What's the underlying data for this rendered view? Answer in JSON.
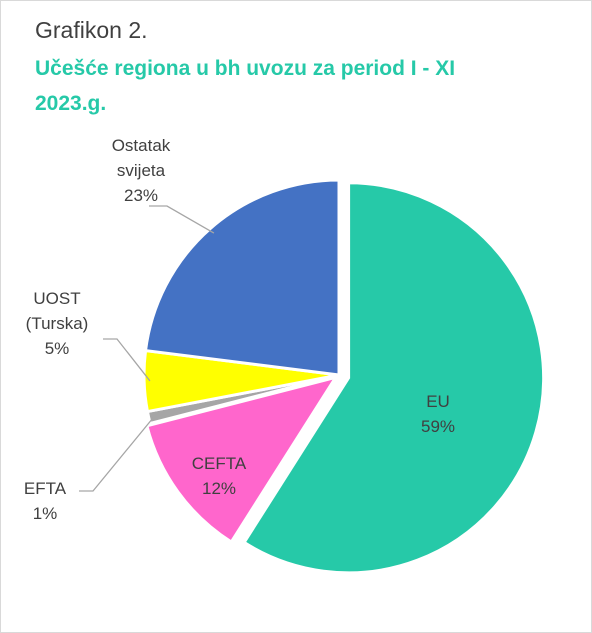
{
  "chart_data": {
    "type": "pie",
    "subtitle": "Grafikon 2.",
    "title": "Učešće regiona u bh uvozu za period I - XI 2023.g.",
    "categories": [
      "EU",
      "CEFTA",
      "EFTA",
      "UOST (Turska)",
      "Ostatak svijeta"
    ],
    "values": [
      59,
      12,
      1,
      5,
      23
    ],
    "value_labels": [
      "59%",
      "12%",
      "1%",
      "5%",
      "23%"
    ],
    "colors": [
      "#26c9a8",
      "#ff66cc",
      "#a6a6a6",
      "#ffff00",
      "#4472c4"
    ]
  }
}
